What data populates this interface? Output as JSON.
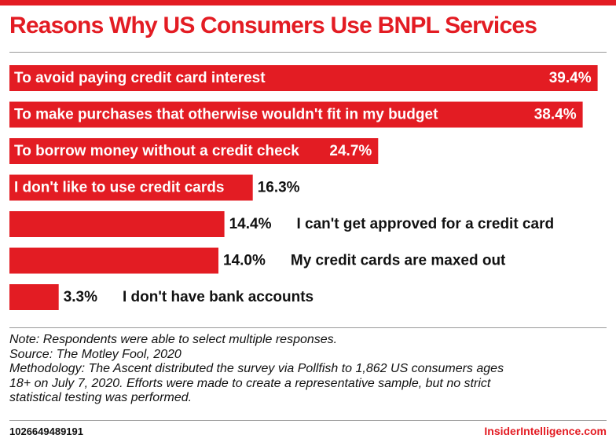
{
  "title": "Reasons Why US Consumers Use BNPL Services",
  "chart_data": {
    "type": "bar",
    "orientation": "horizontal",
    "title": "Reasons Why US Consumers Use BNPL Services",
    "categories": [
      "To avoid paying credit card interest",
      "To make purchases that otherwise wouldn't fit in my budget",
      "To borrow money without a credit check",
      "I don't like to use credit cards",
      "I can't get approved for a credit card",
      "My credit cards are maxed out",
      "I don't have bank accounts"
    ],
    "values": [
      39.4,
      38.4,
      24.7,
      16.3,
      14.4,
      14.0,
      3.3
    ],
    "value_labels": [
      "39.4%",
      "38.4%",
      "24.7%",
      "16.3%",
      "14.4%",
      "14.0%",
      "3.3%"
    ],
    "unit": "% of respondents",
    "xlim": [
      0,
      40
    ],
    "bar_color": "#e31c23",
    "grid": false,
    "legend": "none"
  },
  "notes": {
    "note": "Note: Respondents were able to select multiple responses.",
    "source": "Source: The Motley Fool, 2020",
    "methodology_lines": [
      "Methodology: The Ascent distributed the survey via Pollfish to 1,862 US consumers ages",
      "18+ on July 7, 2020. Efforts were made to create a representative sample, but no strict",
      "statistical testing was performed."
    ]
  },
  "footer": {
    "chart_id": "1026649489191",
    "brand": "InsiderIntelligence.com"
  },
  "colors": {
    "accent": "#e31c23",
    "text": "#111111"
  }
}
